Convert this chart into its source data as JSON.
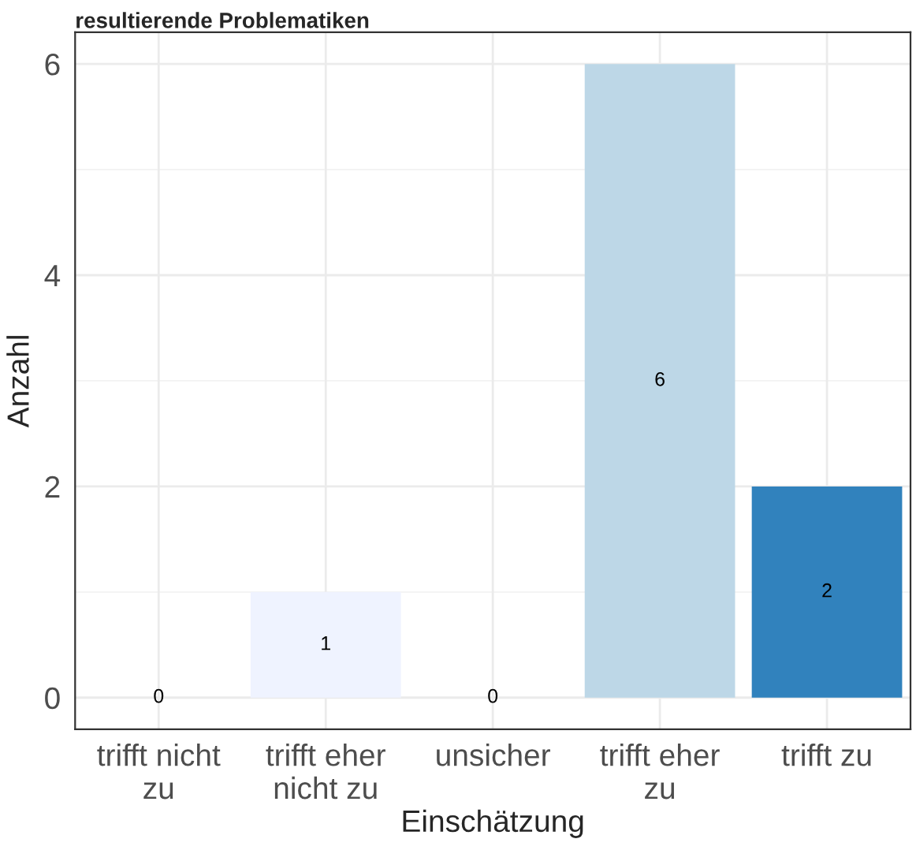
{
  "chart_data": {
    "type": "bar",
    "title": "resultierende Problematiken",
    "xlabel": "Einschätzung",
    "ylabel": "Anzahl",
    "categories": [
      "trifft nicht\nzu",
      "trifft eher\nnicht zu",
      "unsicher",
      "trifft eher\nzu",
      "trifft zu"
    ],
    "values": [
      0,
      1,
      0,
      6,
      2
    ],
    "colors": [
      "#ffffff",
      "#eff3ff",
      "#6baed6",
      "#bdd7e7",
      "#3182bd"
    ],
    "ylim": [
      -0.3,
      6.3
    ],
    "yticks": [
      0,
      2,
      4,
      6
    ],
    "grid": true,
    "data_labels": true
  }
}
